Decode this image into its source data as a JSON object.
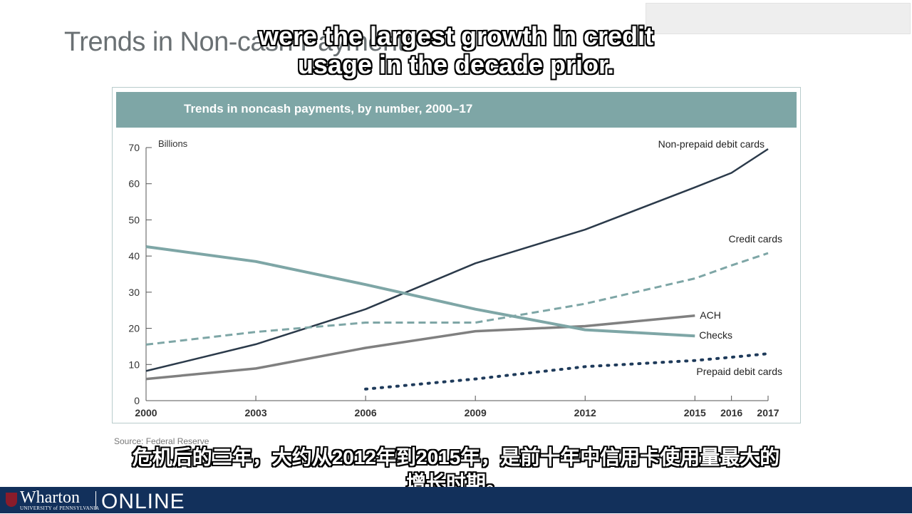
{
  "slide": {
    "title": "Trends in Non-cash Payments",
    "source": "Source: Federal Reserve"
  },
  "subtitles": {
    "en_line1": "were the largest growth in credit",
    "en_line2": "usage in the decade prior.",
    "zh_line1": "危机后的三年，大约从2012年到2015年，是前十年中信用卡使用量最大的",
    "zh_line2": "增长时期。"
  },
  "footer": {
    "wordmark": "Wharton",
    "university": "UNIVERSITY of PENNSYLVANIA",
    "online": "ONLINE"
  },
  "chart_data": {
    "type": "line",
    "title": "Trends in noncash payments, by number, 2000–17",
    "ylabel": "Billions",
    "xlabel": "",
    "x_ticks": [
      2000,
      2003,
      2006,
      2009,
      2012,
      2015,
      2016,
      2017
    ],
    "y_ticks": [
      0,
      10,
      20,
      30,
      40,
      50,
      60,
      70
    ],
    "xlim": [
      2000,
      2017
    ],
    "ylim": [
      0,
      70
    ],
    "grid": false,
    "legend": "direct labels at line ends",
    "series": [
      {
        "name": "Non-prepaid debit cards",
        "style": "solid",
        "color": "#2b3a4a",
        "x": [
          2000,
          2003,
          2006,
          2009,
          2012,
          2015,
          2016,
          2017
        ],
        "y": [
          8.2,
          15.6,
          25.3,
          38.0,
          47.3,
          59.0,
          63.0,
          69.6
        ]
      },
      {
        "name": "Credit cards",
        "style": "dashed",
        "color": "#7ea6a6",
        "x": [
          2000,
          2003,
          2006,
          2009,
          2012,
          2015,
          2016,
          2017
        ],
        "y": [
          15.5,
          19.0,
          21.6,
          21.6,
          26.8,
          33.8,
          37.4,
          40.8
        ]
      },
      {
        "name": "ACH",
        "style": "solid",
        "color": "#808080",
        "x": [
          2000,
          2003,
          2006,
          2009,
          2012,
          2015
        ],
        "y": [
          6.0,
          8.9,
          14.6,
          19.2,
          20.6,
          23.5
        ]
      },
      {
        "name": "Checks",
        "style": "solid",
        "color": "#7ea6a6",
        "x": [
          2000,
          2003,
          2006,
          2009,
          2012,
          2015
        ],
        "y": [
          42.6,
          38.5,
          32.1,
          25.3,
          19.6,
          17.9
        ]
      },
      {
        "name": "Prepaid debit cards",
        "style": "dotted",
        "color": "#1e3a5a",
        "x": [
          2006,
          2009,
          2012,
          2015,
          2016,
          2017
        ],
        "y": [
          3.2,
          6.0,
          9.4,
          11.1,
          12.0,
          13.0
        ]
      }
    ]
  }
}
